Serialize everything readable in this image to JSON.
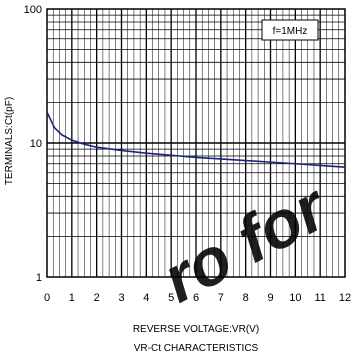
{
  "chart_data": {
    "type": "line",
    "title": "VR-Ct CHARACTERISTICS",
    "xlabel": "REVERSE VOLTAGE:VR(V)",
    "ylabel": "TERMINALS:Ct(pF)",
    "annotation": "f=1MHz",
    "xlim": [
      0,
      12
    ],
    "ylim": [
      1,
      100
    ],
    "yscale": "log",
    "grid": true,
    "x_ticks": [
      "0",
      "1",
      "2",
      "3",
      "4",
      "5",
      "6",
      "7",
      "8",
      "9",
      "10",
      "11",
      "12"
    ],
    "y_ticks": [
      "1",
      "10",
      "100"
    ],
    "series": [
      {
        "color": "#1a237e",
        "points": [
          [
            0,
            17
          ],
          [
            0.3,
            13
          ],
          [
            0.6,
            11.5
          ],
          [
            1,
            10.5
          ],
          [
            1.5,
            9.8
          ],
          [
            2,
            9.3
          ],
          [
            3,
            8.8
          ],
          [
            4,
            8.4
          ],
          [
            5,
            8.1
          ],
          [
            6,
            7.8
          ],
          [
            7,
            7.6
          ],
          [
            8,
            7.4
          ],
          [
            9,
            7.2
          ],
          [
            10,
            7.0
          ],
          [
            11,
            6.8
          ],
          [
            12,
            6.6
          ]
        ]
      }
    ]
  },
  "watermark": "ro  for"
}
